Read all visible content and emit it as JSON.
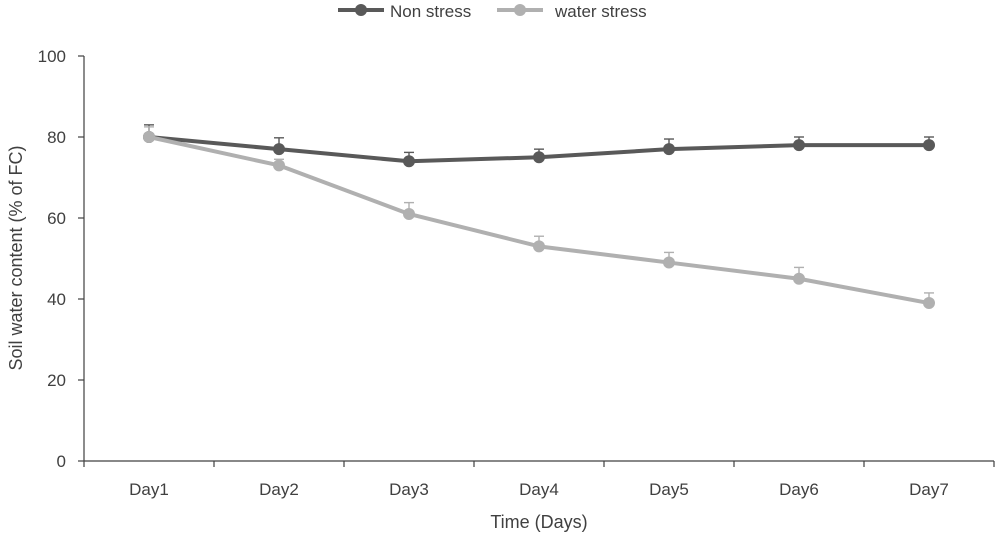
{
  "chart_data": {
    "type": "line",
    "title": "",
    "xlabel": "Time (Days)",
    "ylabel": "Soil water content (% of FC)",
    "categories": [
      "Day1",
      "Day2",
      "Day3",
      "Day4",
      "Day5",
      "Day6",
      "Day7"
    ],
    "ylim": [
      0,
      100
    ],
    "yticks": [
      0,
      20,
      40,
      60,
      80,
      100
    ],
    "legend_position": "top-center",
    "series": [
      {
        "name": "Non stress",
        "color": "#595959",
        "values": [
          80,
          77,
          74,
          75,
          77,
          78,
          78
        ],
        "errors": [
          3,
          2.8,
          2.2,
          2,
          2.5,
          2,
          2
        ]
      },
      {
        "name": "water stress",
        "color": "#b0b0b0",
        "values": [
          80,
          73,
          61,
          53,
          49,
          45,
          39
        ],
        "errors": [
          2.5,
          1.5,
          2.8,
          2.5,
          2.5,
          2.8,
          2.5
        ]
      }
    ]
  }
}
